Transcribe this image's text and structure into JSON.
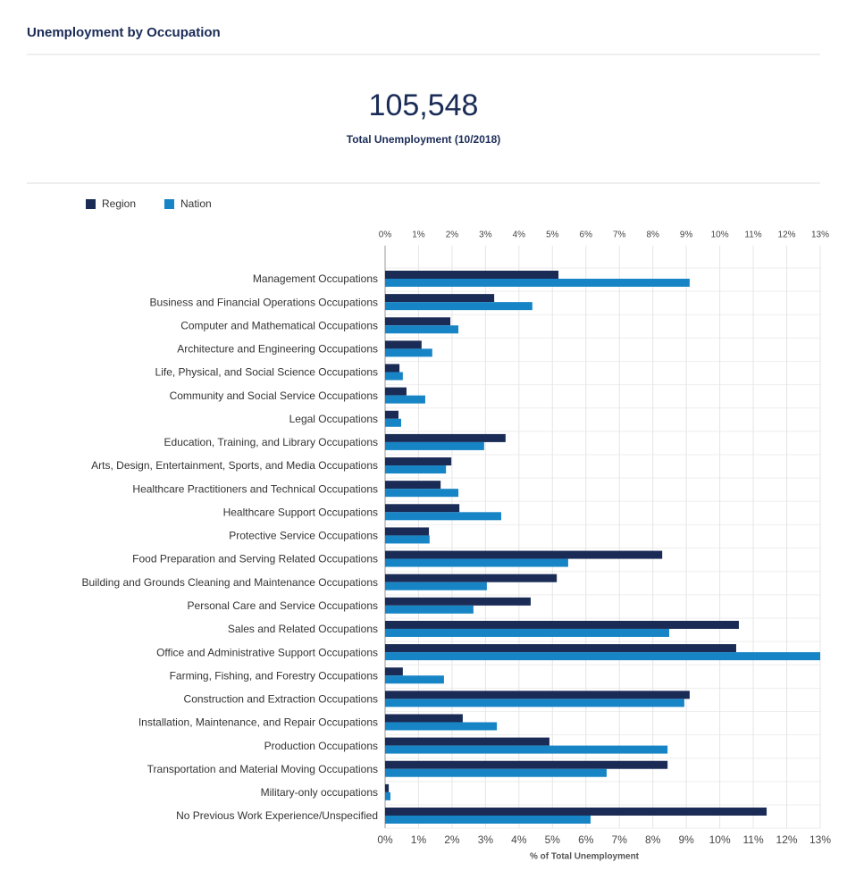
{
  "header": {
    "title": "Unemployment by Occupation"
  },
  "kpi": {
    "value": "105,548",
    "label": "Total Unemployment (10/2018)"
  },
  "chart_data": {
    "type": "bar",
    "orientation": "horizontal",
    "categories": [
      "Management Occupations",
      "Business and Financial Operations Occupations",
      "Computer and Mathematical Occupations",
      "Architecture and Engineering Occupations",
      "Life, Physical, and Social Science Occupations",
      "Community and Social Service Occupations",
      "Legal Occupations",
      "Education, Training, and Library Occupations",
      "Arts, Design, Entertainment, Sports, and Media Occupations",
      "Healthcare Practitioners and Technical Occupations",
      "Healthcare Support Occupations",
      "Protective Service Occupations",
      "Food Preparation and Serving Related Occupations",
      "Building and Grounds Cleaning and Maintenance Occupations",
      "Personal Care and Service Occupations",
      "Sales and Related Occupations",
      "Office and Administrative Support Occupations",
      "Farming, Fishing, and Forestry Occupations",
      "Construction and Extraction Occupations",
      "Installation, Maintenance, and Repair Occupations",
      "Production Occupations",
      "Transportation and Material Moving Occupations",
      "Military-only occupations",
      "No Previous Work Experience/Unspecified"
    ],
    "series": [
      {
        "name": "Region",
        "color": "#1a2b56",
        "values": [
          5.18,
          3.26,
          1.95,
          1.09,
          0.43,
          0.64,
          0.4,
          3.6,
          1.98,
          1.66,
          2.22,
          1.31,
          8.28,
          5.13,
          4.35,
          10.57,
          10.49,
          0.53,
          9.1,
          2.32,
          4.91,
          8.44,
          0.11,
          11.4
        ]
      },
      {
        "name": "Nation",
        "color": "#1785c5",
        "values": [
          9.1,
          4.4,
          2.19,
          1.41,
          0.53,
          1.2,
          0.48,
          2.96,
          1.82,
          2.19,
          3.47,
          1.33,
          5.47,
          3.04,
          2.64,
          8.49,
          13.1,
          1.76,
          8.94,
          3.34,
          8.44,
          6.62,
          0.16,
          6.14
        ]
      }
    ],
    "xlim": [
      0,
      13
    ],
    "xticks": [
      {
        "value": 0,
        "label": "0%"
      },
      {
        "value": 1,
        "label": "1%"
      },
      {
        "value": 2,
        "label": "2%"
      },
      {
        "value": 3,
        "label": "3%"
      },
      {
        "value": 4,
        "label": "4%"
      },
      {
        "value": 5,
        "label": "5%"
      },
      {
        "value": 6,
        "label": "6%"
      },
      {
        "value": 7,
        "label": "7%"
      },
      {
        "value": 8,
        "label": "8%"
      },
      {
        "value": 9,
        "label": "9%"
      },
      {
        "value": 10,
        "label": "10%"
      },
      {
        "value": 11,
        "label": "11%"
      },
      {
        "value": 12,
        "label": "12%"
      },
      {
        "value": 13,
        "label": "13%"
      }
    ],
    "xlabel": "% of Total Unemployment",
    "grid": true,
    "legend": "top-left"
  }
}
